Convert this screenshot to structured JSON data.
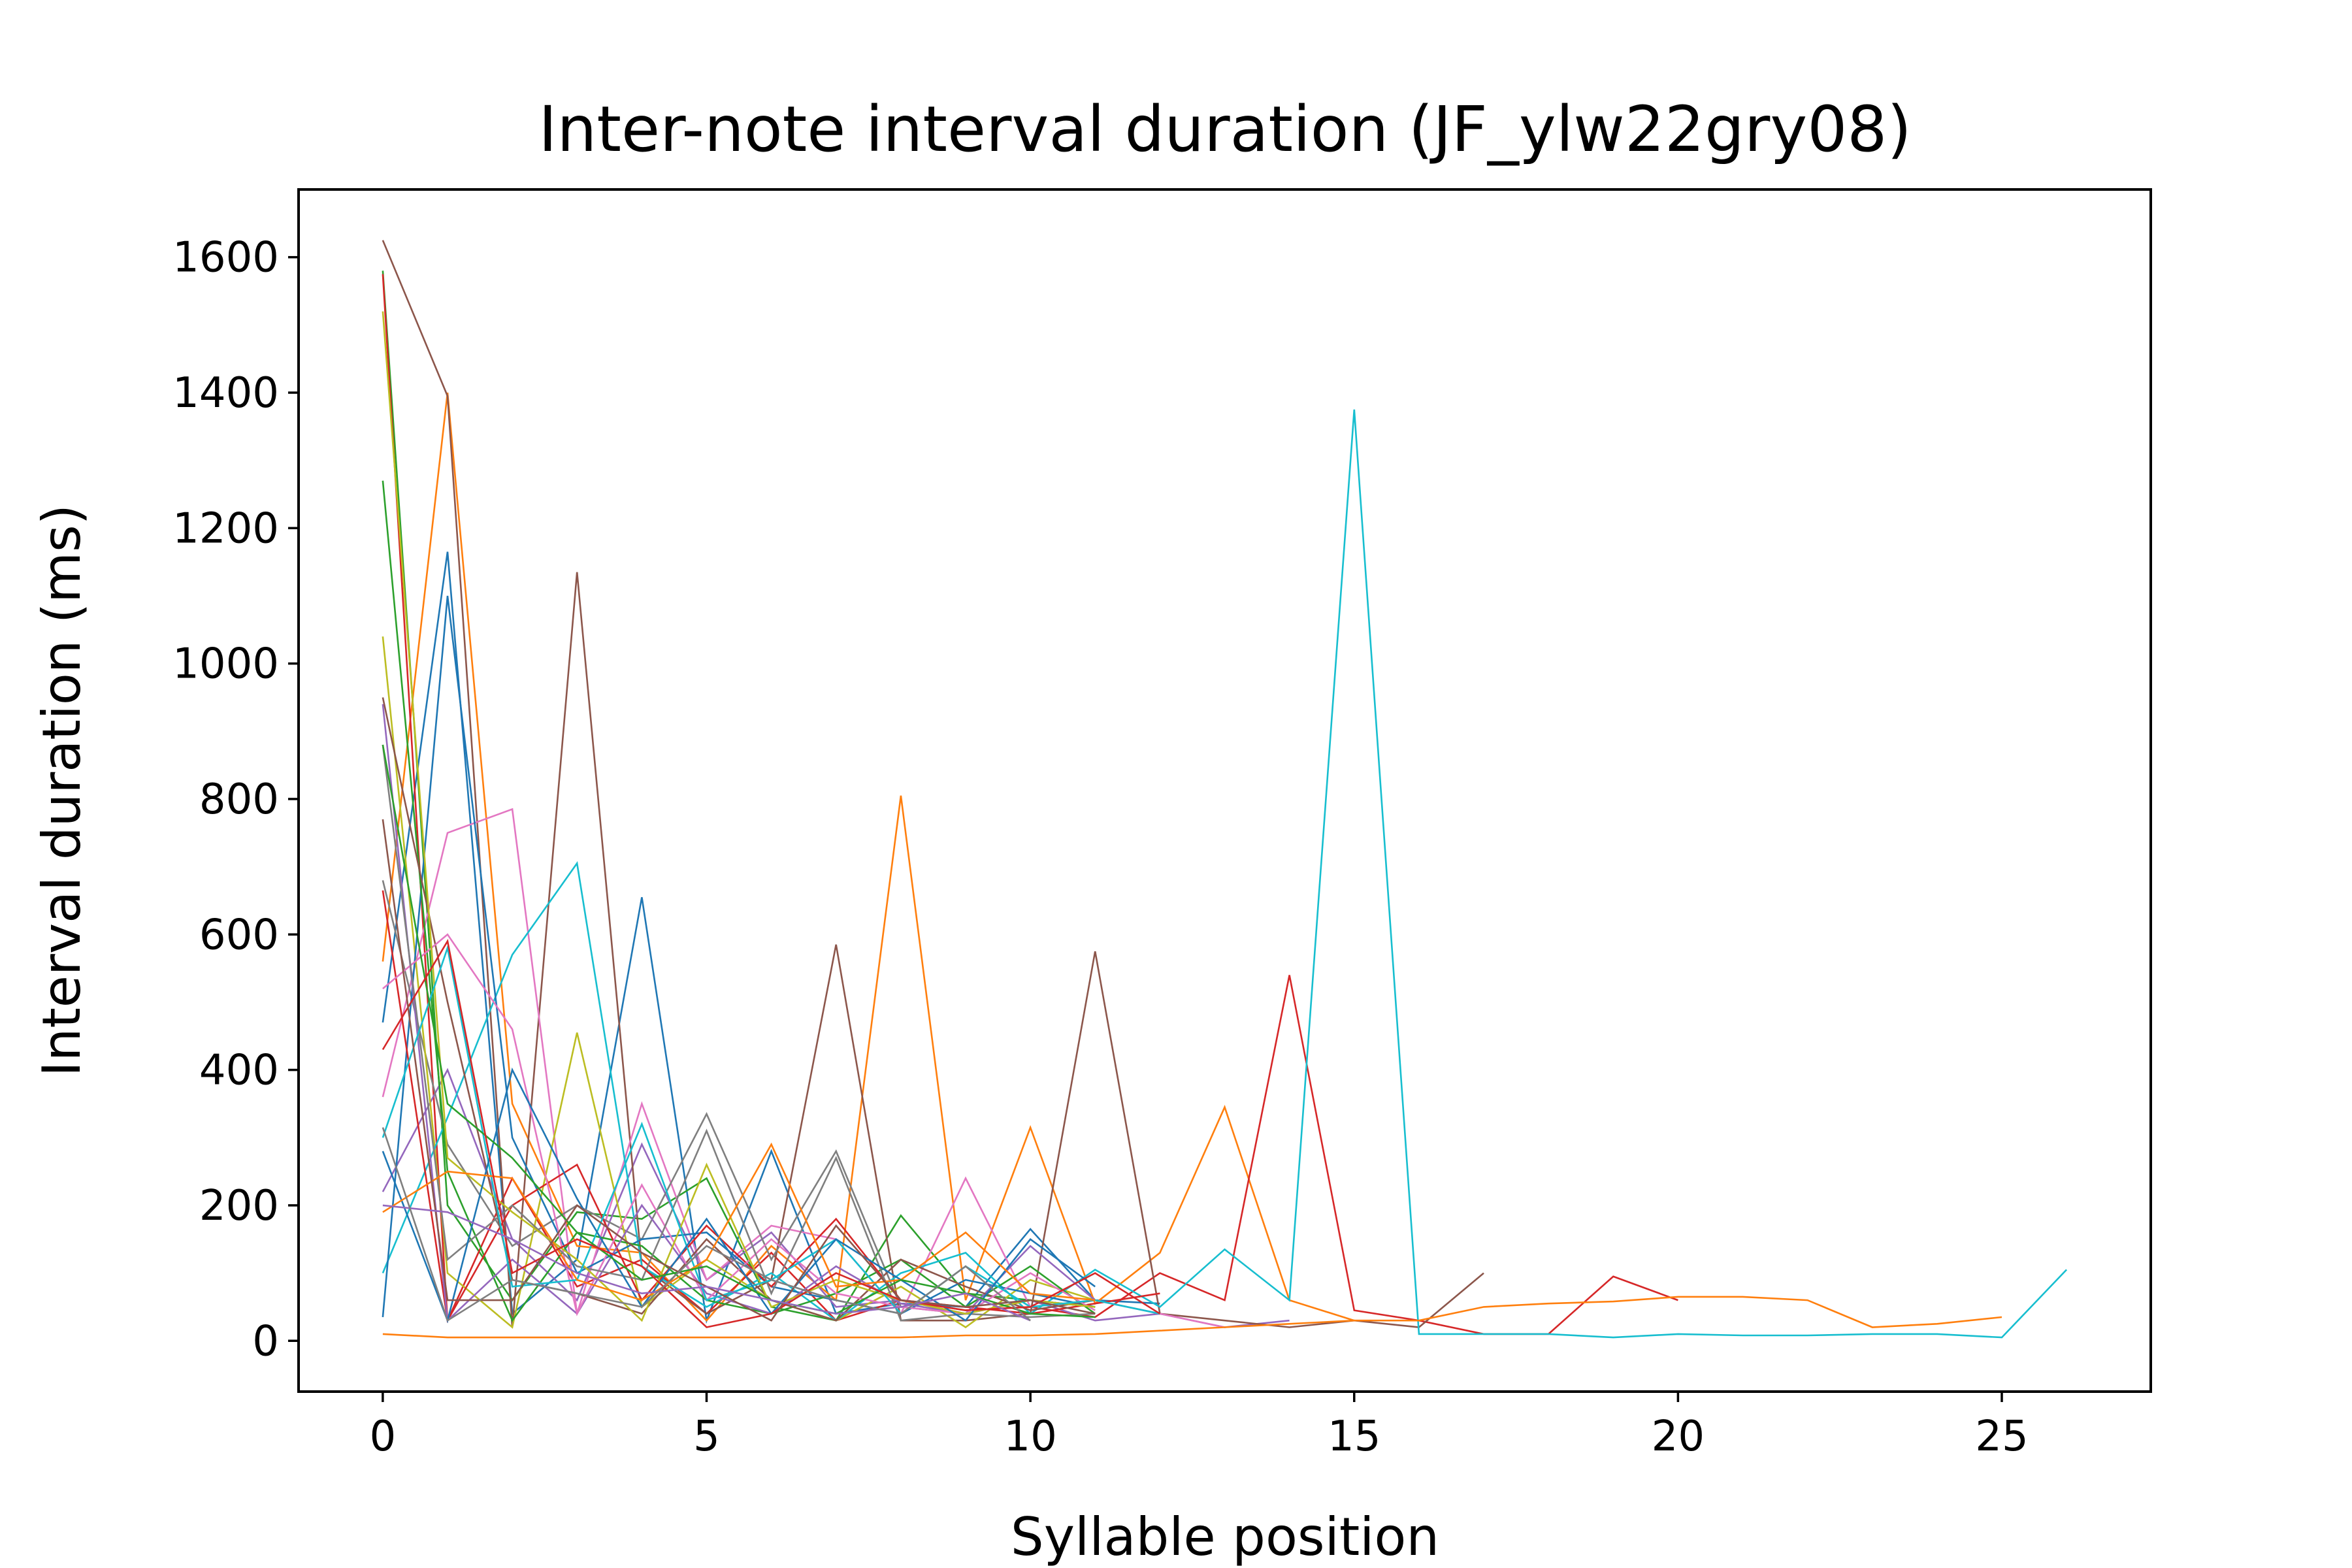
{
  "chart_data": {
    "type": "line",
    "title": "Inter-note interval duration (JF_ylw22gry08)",
    "xlabel": "Syllable position",
    "ylabel": "Interval duration (ms)",
    "xlim": [
      -1.3,
      27.3
    ],
    "ylim": [
      -75,
      1700
    ],
    "xticks": [
      0,
      5,
      10,
      15,
      20,
      25
    ],
    "yticks": [
      0,
      200,
      400,
      600,
      800,
      1000,
      1200,
      1400,
      1600
    ],
    "grid": false,
    "legend": "none",
    "palette": [
      "#1f77b4",
      "#ff7f0e",
      "#2ca02c",
      "#d62728",
      "#9467bd",
      "#8c564b",
      "#e377c2",
      "#7f7f7f",
      "#bcbd22",
      "#17becf"
    ],
    "series": [
      {
        "color": "#1f77b4",
        "values": [
          470,
          1165,
          40,
          120,
          655,
          30,
          280,
          40,
          55,
          50,
          165,
          60,
          55
        ]
      },
      {
        "color": "#ff7f0e",
        "values": [
          560,
          1400,
          350,
          140,
          130,
          30,
          140,
          60,
          805,
          60,
          315,
          55,
          130,
          345,
          60,
          30
        ]
      },
      {
        "color": "#2ca02c",
        "values": [
          1580,
          200,
          60,
          190,
          180,
          240,
          50,
          30,
          185,
          70,
          60,
          50
        ]
      },
      {
        "color": "#d62728",
        "values": [
          1575,
          30,
          240,
          80,
          120,
          40,
          130,
          30,
          60,
          45,
          50,
          35,
          100,
          60,
          540,
          45,
          30,
          10,
          10,
          95,
          60
        ]
      },
      {
        "color": "#9467bd",
        "values": [
          220,
          400,
          150,
          60,
          290,
          90,
          160,
          50,
          60,
          40,
          60,
          30,
          40,
          20,
          30
        ]
      },
      {
        "color": "#8c564b",
        "values": [
          1625,
          1395,
          20,
          1135,
          110,
          40,
          90,
          585,
          30,
          30,
          40,
          575,
          40,
          30,
          20,
          30,
          20,
          100
        ]
      },
      {
        "color": "#e377c2",
        "values": [
          360,
          750,
          785,
          40,
          350,
          90,
          170,
          150,
          40,
          240,
          50,
          60,
          40,
          20
        ]
      },
      {
        "color": "#7f7f7f",
        "values": [
          680,
          290,
          140,
          200,
          150,
          335,
          120,
          280,
          50,
          40,
          60,
          50
        ]
      },
      {
        "color": "#bcbd22",
        "values": [
          1040,
          100,
          20,
          455,
          50,
          120,
          60,
          30,
          80,
          20,
          90,
          60
        ]
      },
      {
        "color": "#17becf",
        "values": [
          100,
          330,
          570,
          705,
          110,
          50,
          100,
          30,
          100,
          130,
          40,
          105,
          50,
          135,
          60,
          1375,
          10,
          10,
          10,
          5,
          10,
          8,
          8,
          10,
          10,
          5,
          105
        ]
      },
      {
        "color": "#1f77b4",
        "values": [
          35,
          1100,
          300,
          100,
          150,
          160,
          80,
          60,
          40,
          90,
          70,
          50
        ]
      },
      {
        "color": "#ff7f0e",
        "values": [
          10,
          5,
          5,
          5,
          5,
          5,
          5,
          5,
          5,
          8,
          8,
          10,
          15,
          20,
          25,
          30,
          30,
          50,
          55,
          58,
          65,
          65,
          60,
          20,
          25,
          35
        ]
      },
      {
        "color": "#2ca02c",
        "values": [
          1270,
          250,
          30,
          160,
          140,
          60,
          40,
          70,
          120,
          50,
          110,
          40
        ]
      },
      {
        "color": "#d62728",
        "values": [
          665,
          30,
          200,
          260,
          60,
          170,
          80,
          180,
          60,
          50,
          40,
          55,
          70
        ]
      },
      {
        "color": "#9467bd",
        "values": [
          940,
          30,
          120,
          40,
          200,
          70,
          40,
          110,
          55,
          40,
          140,
          60
        ]
      },
      {
        "color": "#8c564b",
        "values": [
          950,
          500,
          90,
          70,
          40,
          150,
          60,
          30,
          120,
          80,
          45,
          60
        ]
      },
      {
        "color": "#e377c2",
        "values": [
          520,
          600,
          460,
          40,
          230,
          60,
          150,
          70,
          50,
          40,
          100,
          45
        ]
      },
      {
        "color": "#7f7f7f",
        "values": [
          880,
          120,
          200,
          110,
          90,
          310,
          70,
          270,
          30,
          40,
          35,
          40
        ]
      },
      {
        "color": "#bcbd22",
        "values": [
          1520,
          270,
          190,
          120,
          30,
          260,
          50,
          90,
          60,
          40,
          60,
          50
        ]
      },
      {
        "color": "#17becf",
        "values": [
          300,
          580,
          80,
          90,
          320,
          60,
          90,
          150,
          40,
          110,
          50,
          60,
          40
        ]
      },
      {
        "color": "#1f77b4",
        "values": [
          280,
          30,
          400,
          210,
          50,
          180,
          40,
          150,
          90,
          30,
          150,
          80
        ]
      },
      {
        "color": "#ff7f0e",
        "values": [
          190,
          250,
          240,
          90,
          60,
          120,
          290,
          80,
          90,
          160,
          70,
          60
        ]
      },
      {
        "color": "#2ca02c",
        "values": [
          880,
          350,
          270,
          160,
          90,
          110,
          60,
          40,
          90,
          70,
          40,
          35
        ]
      },
      {
        "color": "#d62728",
        "values": [
          430,
          590,
          100,
          150,
          110,
          20,
          40,
          100,
          60,
          45,
          50,
          100,
          40
        ]
      },
      {
        "color": "#8c564b",
        "values": [
          770,
          60,
          60,
          200,
          130,
          80,
          30,
          170,
          60,
          50,
          60,
          40
        ]
      },
      {
        "color": "#9467bd",
        "values": [
          200,
          190,
          150,
          100,
          70,
          80,
          60,
          40,
          50,
          70,
          30
        ]
      },
      {
        "color": "#7f7f7f",
        "values": [
          315,
          30,
          90,
          70,
          50,
          140,
          90,
          60,
          40,
          110,
          30
        ]
      }
    ]
  }
}
